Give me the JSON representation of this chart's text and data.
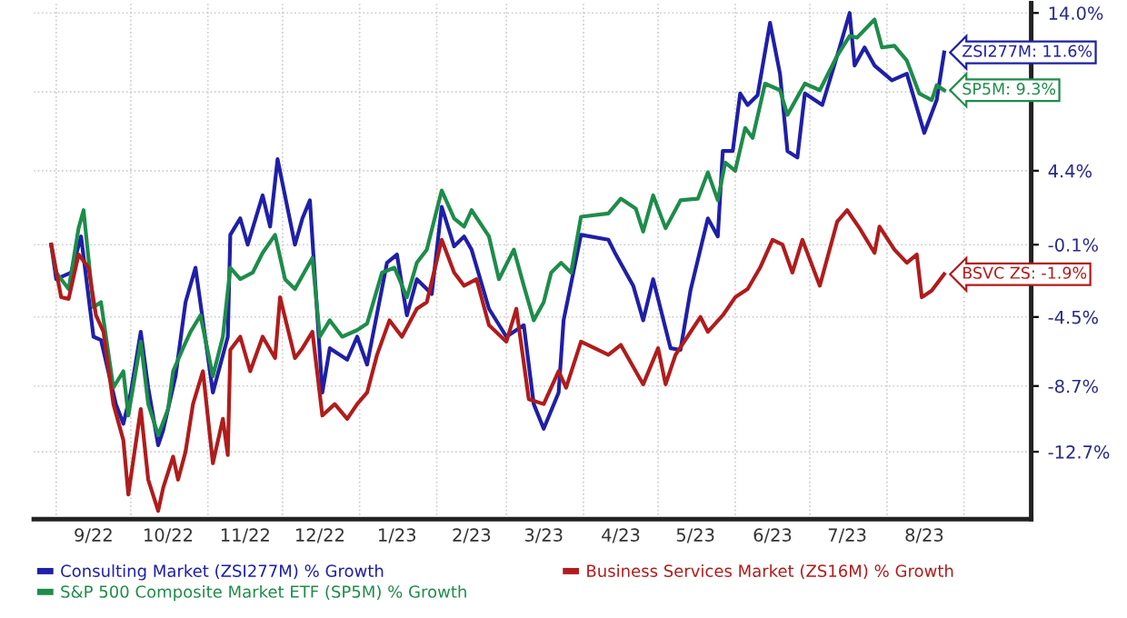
{
  "chart_data": {
    "type": "line",
    "xlim": [
      "2022-08-23",
      "2023-09-28"
    ],
    "ylim": [
      -16.8,
      14.6
    ],
    "xticks": [
      {
        "value": "2022-09-01",
        "label": null
      },
      {
        "value": "2022-09-16",
        "label": "9/22"
      },
      {
        "value": "2022-10-01",
        "label": null
      },
      {
        "value": "2022-10-16",
        "label": "10/22"
      },
      {
        "value": "2022-11-01",
        "label": null
      },
      {
        "value": "2022-11-16",
        "label": "11/22"
      },
      {
        "value": "2022-12-01",
        "label": null
      },
      {
        "value": "2022-12-16",
        "label": "12/22"
      },
      {
        "value": "2023-01-01",
        "label": null
      },
      {
        "value": "2023-01-16",
        "label": "1/23"
      },
      {
        "value": "2023-02-01",
        "label": null
      },
      {
        "value": "2023-02-15",
        "label": "2/23"
      },
      {
        "value": "2023-03-01",
        "label": null
      },
      {
        "value": "2023-03-16",
        "label": "3/23"
      },
      {
        "value": "2023-04-01",
        "label": null
      },
      {
        "value": "2023-04-16",
        "label": "4/23"
      },
      {
        "value": "2023-05-01",
        "label": null
      },
      {
        "value": "2023-05-16",
        "label": "5/23"
      },
      {
        "value": "2023-06-01",
        "label": null
      },
      {
        "value": "2023-06-16",
        "label": "6/23"
      },
      {
        "value": "2023-07-01",
        "label": null
      },
      {
        "value": "2023-07-16",
        "label": "7/23"
      },
      {
        "value": "2023-08-01",
        "label": null
      },
      {
        "value": "2023-08-16",
        "label": "8/23"
      },
      {
        "value": "2023-09-01",
        "label": null
      }
    ],
    "yticks": [
      {
        "value": 14.0,
        "label": "14.0%"
      },
      {
        "value": 9.2,
        "label": null
      },
      {
        "value": 4.4,
        "label": "4.4%"
      },
      {
        "value": -0.1,
        "label": "-0.1%"
      },
      {
        "value": -4.5,
        "label": "-4.5%"
      },
      {
        "value": -8.7,
        "label": "-8.7%"
      },
      {
        "value": -12.7,
        "label": "-12.7%"
      }
    ],
    "grid": true,
    "legend": "bottom",
    "series": [
      {
        "name": "Consulting Market (ZSI277M) % Growth",
        "color": "#1f1fa8",
        "x": [
          "2022-08-30",
          "2022-09-01",
          "2022-09-07",
          "2022-09-11",
          "2022-09-16",
          "2022-09-19",
          "2022-09-25",
          "2022-09-28",
          "2022-10-01",
          "2022-10-05",
          "2022-10-08",
          "2022-10-12",
          "2022-10-14",
          "2022-10-19",
          "2022-10-23",
          "2022-10-27",
          "2022-11-03",
          "2022-11-09",
          "2022-11-10",
          "2022-11-14",
          "2022-11-17",
          "2022-11-23",
          "2022-11-26",
          "2022-11-29",
          "2022-12-06",
          "2022-12-09",
          "2022-12-12",
          "2022-12-17",
          "2022-12-20",
          "2022-12-27",
          "2022-12-31",
          "2023-01-04",
          "2023-01-12",
          "2023-01-16",
          "2023-01-20",
          "2023-01-24",
          "2023-01-30",
          "2023-02-03",
          "2023-02-08",
          "2023-02-12",
          "2023-02-15",
          "2023-02-22",
          "2023-03-01",
          "2023-03-08",
          "2023-03-12",
          "2023-03-16",
          "2023-03-22",
          "2023-03-24",
          "2023-03-31",
          "2023-04-11",
          "2023-04-14",
          "2023-04-21",
          "2023-04-25",
          "2023-04-29",
          "2023-05-06",
          "2023-05-10",
          "2023-05-14",
          "2023-05-21",
          "2023-05-25",
          "2023-05-27",
          "2023-05-31",
          "2023-06-03",
          "2023-06-06",
          "2023-06-10",
          "2023-06-15",
          "2023-06-19",
          "2023-06-22",
          "2023-06-26",
          "2023-06-29",
          "2023-07-06",
          "2023-07-13",
          "2023-07-17",
          "2023-07-19",
          "2023-07-23",
          "2023-07-27",
          "2023-08-03",
          "2023-08-09",
          "2023-08-16",
          "2023-08-21",
          "2023-08-24"
        ],
        "values": [
          -0.1,
          -2.2,
          -1.8,
          0.4,
          -5.7,
          -5.9,
          -9.8,
          -11.0,
          -9.1,
          -5.4,
          -8.8,
          -12.3,
          -11.4,
          -8.1,
          -3.6,
          -1.5,
          -9.1,
          -5.7,
          0.5,
          1.5,
          -0.1,
          2.9,
          1.0,
          5.1,
          -0.1,
          1.5,
          2.6,
          -9.1,
          -6.4,
          -7.1,
          -5.7,
          -7.4,
          -1.2,
          -0.7,
          -4.4,
          -2.2,
          -3.1,
          2.2,
          -0.2,
          0.4,
          -0.4,
          -4.0,
          -5.7,
          -5.0,
          -9.8,
          -11.3,
          -9.1,
          -4.7,
          0.5,
          0.2,
          -0.7,
          -2.6,
          -4.7,
          -2.2,
          -6.4,
          -6.5,
          -2.9,
          1.5,
          0.4,
          5.6,
          5.6,
          9.1,
          8.4,
          9.0,
          13.4,
          10.3,
          5.6,
          5.2,
          9.1,
          8.4,
          11.9,
          14.0,
          10.8,
          11.9,
          10.8,
          9.9,
          10.3,
          6.7,
          8.7,
          11.6
        ]
      },
      {
        "name": "S&P 500 Composite Market ETF (SP5M) % Growth",
        "color": "#1e8c4a",
        "x": [
          "2022-08-30",
          "2022-09-01",
          "2022-09-06",
          "2022-09-10",
          "2022-09-12",
          "2022-09-16",
          "2022-09-19",
          "2022-09-24",
          "2022-09-28",
          "2022-09-30",
          "2022-10-05",
          "2022-10-08",
          "2022-10-12",
          "2022-10-16",
          "2022-10-18",
          "2022-10-22",
          "2022-10-25",
          "2022-10-29",
          "2022-11-03",
          "2022-11-07",
          "2022-11-10",
          "2022-11-14",
          "2022-11-19",
          "2022-11-23",
          "2022-11-28",
          "2022-12-02",
          "2022-12-06",
          "2022-12-13",
          "2022-12-16",
          "2022-12-20",
          "2022-12-25",
          "2022-12-31",
          "2023-01-04",
          "2023-01-10",
          "2023-01-15",
          "2023-01-20",
          "2023-01-24",
          "2023-01-28",
          "2023-02-03",
          "2023-02-08",
          "2023-02-12",
          "2023-02-15",
          "2023-02-22",
          "2023-02-26",
          "2023-03-04",
          "2023-03-08",
          "2023-03-12",
          "2023-03-16",
          "2023-03-19",
          "2023-03-23",
          "2023-03-27",
          "2023-03-31",
          "2023-04-11",
          "2023-04-16",
          "2023-04-22",
          "2023-04-25",
          "2023-04-29",
          "2023-05-04",
          "2023-05-10",
          "2023-05-17",
          "2023-05-21",
          "2023-05-25",
          "2023-05-28",
          "2023-06-01",
          "2023-06-05",
          "2023-06-08",
          "2023-06-13",
          "2023-06-19",
          "2023-06-22",
          "2023-06-29",
          "2023-07-05",
          "2023-07-12",
          "2023-07-17",
          "2023-07-20",
          "2023-07-27",
          "2023-07-30",
          "2023-08-04",
          "2023-08-09",
          "2023-08-14",
          "2023-08-19",
          "2023-08-21",
          "2023-08-24"
        ],
        "values": [
          -0.1,
          -1.8,
          -2.8,
          0.9,
          2.0,
          -3.9,
          -3.6,
          -8.8,
          -7.8,
          -10.5,
          -6.0,
          -9.8,
          -11.7,
          -10.1,
          -7.8,
          -6.4,
          -5.4,
          -4.4,
          -8.1,
          -5.7,
          -1.5,
          -2.2,
          -1.8,
          -0.6,
          0.5,
          -2.2,
          -2.8,
          -0.9,
          -5.7,
          -4.7,
          -5.7,
          -5.3,
          -4.9,
          -1.8,
          -1.5,
          -3.3,
          -1.2,
          -0.4,
          3.2,
          1.5,
          1.0,
          2.0,
          0.4,
          -2.2,
          -0.4,
          -2.6,
          -4.7,
          -3.6,
          -1.8,
          -1.2,
          -1.8,
          1.6,
          1.8,
          2.7,
          2.1,
          0.7,
          2.9,
          0.9,
          2.6,
          2.7,
          4.3,
          2.6,
          4.9,
          4.4,
          7.0,
          6.4,
          9.7,
          9.3,
          7.8,
          9.7,
          9.3,
          11.4,
          12.6,
          12.5,
          13.6,
          11.9,
          12.0,
          11.1,
          9.1,
          8.7,
          9.6,
          9.3
        ]
      },
      {
        "name": "Business Services Market (ZS16M) % Growth",
        "color": "#b01c1c",
        "x": [
          "2022-08-30",
          "2022-09-03",
          "2022-09-06",
          "2022-09-10",
          "2022-09-14",
          "2022-09-17",
          "2022-09-20",
          "2022-09-24",
          "2022-09-28",
          "2022-09-30",
          "2022-10-05",
          "2022-10-08",
          "2022-10-12",
          "2022-10-14",
          "2022-10-18",
          "2022-10-20",
          "2022-10-23",
          "2022-10-26",
          "2022-10-30",
          "2022-11-03",
          "2022-11-07",
          "2022-11-09",
          "2022-11-10",
          "2022-11-14",
          "2022-11-18",
          "2022-11-23",
          "2022-11-28",
          "2022-11-30",
          "2022-12-06",
          "2022-12-09",
          "2022-12-13",
          "2022-12-17",
          "2022-12-22",
          "2022-12-27",
          "2022-12-31",
          "2023-01-04",
          "2023-01-08",
          "2023-01-13",
          "2023-01-18",
          "2023-01-24",
          "2023-01-28",
          "2023-02-03",
          "2023-02-08",
          "2023-02-12",
          "2023-02-17",
          "2023-02-22",
          "2023-03-01",
          "2023-03-05",
          "2023-03-10",
          "2023-03-16",
          "2023-03-22",
          "2023-03-25",
          "2023-03-31",
          "2023-04-11",
          "2023-04-16",
          "2023-04-25",
          "2023-05-01",
          "2023-05-04",
          "2023-05-08",
          "2023-05-18",
          "2023-05-21",
          "2023-05-27",
          "2023-06-01",
          "2023-06-06",
          "2023-06-11",
          "2023-06-16",
          "2023-06-20",
          "2023-06-24",
          "2023-06-28",
          "2023-07-05",
          "2023-07-12",
          "2023-07-16",
          "2023-07-21",
          "2023-07-27",
          "2023-07-29",
          "2023-08-04",
          "2023-08-09",
          "2023-08-13",
          "2023-08-15",
          "2023-08-19",
          "2023-08-24"
        ],
        "values": [
          -0.1,
          -3.3,
          -3.4,
          -0.7,
          -1.5,
          -4.4,
          -5.4,
          -9.8,
          -12.0,
          -15.3,
          -10.1,
          -14.4,
          -16.3,
          -14.9,
          -13.0,
          -14.4,
          -12.7,
          -9.8,
          -7.8,
          -13.4,
          -10.7,
          -12.9,
          -6.5,
          -5.7,
          -7.8,
          -5.7,
          -7.0,
          -3.3,
          -7.0,
          -6.4,
          -5.4,
          -10.5,
          -9.8,
          -10.7,
          -9.8,
          -9.1,
          -6.8,
          -4.7,
          -5.7,
          -4.0,
          -3.6,
          0.2,
          -1.8,
          -2.6,
          -2.2,
          -5.0,
          -6.0,
          -4.0,
          -9.5,
          -9.8,
          -7.8,
          -8.8,
          -6.0,
          -6.8,
          -6.2,
          -8.6,
          -6.4,
          -8.6,
          -6.8,
          -4.5,
          -5.4,
          -4.4,
          -3.3,
          -2.8,
          -1.5,
          0.2,
          -0.1,
          -1.8,
          0.2,
          -2.6,
          1.3,
          2.0,
          0.9,
          -0.6,
          1.0,
          -0.4,
          -1.2,
          -0.7,
          -3.3,
          -2.9,
          -1.9
        ]
      }
    ],
    "annotations": [
      {
        "text": "ZSI277M: 11.6%",
        "x": "2023-08-24",
        "y": 11.6
      },
      {
        "text": "SP5M: 9.3%",
        "x": "2023-08-24",
        "y": 9.3
      },
      {
        "text": "BSVC ZS: -1.9%",
        "x": "2023-08-24",
        "y": -1.9
      }
    ]
  }
}
